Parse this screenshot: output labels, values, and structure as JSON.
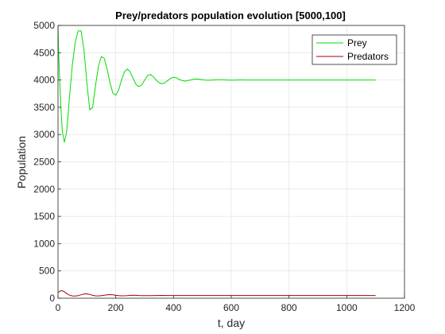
{
  "chart_data": {
    "type": "line",
    "title": "Prey/predators population evolution [5000,100]",
    "xlabel": "t, day",
    "ylabel": "Population",
    "xlim": [
      0,
      1200
    ],
    "ylim": [
      0,
      5000
    ],
    "xticks": [
      0,
      200,
      400,
      600,
      800,
      1000,
      1200
    ],
    "yticks": [
      0,
      500,
      1000,
      1500,
      2000,
      2500,
      3000,
      3500,
      4000,
      4500,
      5000
    ],
    "grid": true,
    "legend_position": "top-right",
    "series": [
      {
        "name": "Prey",
        "color": "#00dd00",
        "x": [
          0,
          2,
          5,
          10,
          15,
          22,
          30,
          40,
          50,
          60,
          70,
          80,
          90,
          100,
          110,
          120,
          130,
          140,
          150,
          160,
          170,
          180,
          190,
          200,
          210,
          220,
          230,
          240,
          250,
          260,
          270,
          280,
          290,
          300,
          310,
          320,
          330,
          340,
          350,
          360,
          370,
          380,
          390,
          400,
          410,
          420,
          430,
          440,
          450,
          460,
          470,
          480,
          490,
          500,
          510,
          520,
          530,
          540,
          550,
          560,
          570,
          580,
          590,
          600,
          610,
          620,
          630,
          640,
          650,
          660,
          670,
          680,
          690,
          700,
          720,
          750,
          800,
          850,
          900,
          950,
          1000,
          1050,
          1100
        ],
        "values": [
          5000,
          4550,
          4100,
          3500,
          3050,
          2860,
          3050,
          3700,
          4300,
          4700,
          4900,
          4900,
          4550,
          3950,
          3450,
          3500,
          3900,
          4250,
          4430,
          4400,
          4200,
          3950,
          3760,
          3720,
          3820,
          4000,
          4150,
          4200,
          4150,
          4030,
          3920,
          3880,
          3910,
          4000,
          4080,
          4100,
          4060,
          4000,
          3950,
          3930,
          3950,
          3990,
          4030,
          4050,
          4040,
          4010,
          3990,
          3980,
          3990,
          4000,
          4015,
          4020,
          4015,
          4005,
          3998,
          3995,
          3998,
          4002,
          4005,
          4006,
          4004,
          4001,
          3999,
          3998,
          3999,
          4000,
          4001,
          4001,
          4000,
          4000,
          4000,
          4000,
          4000,
          4000,
          4000,
          4000,
          4000,
          4000,
          4000,
          4000,
          4000,
          4000,
          4000
        ]
      },
      {
        "name": "Predators",
        "color": "#aa0000",
        "x": [
          0,
          10,
          20,
          30,
          40,
          50,
          60,
          70,
          80,
          90,
          100,
          110,
          120,
          130,
          140,
          150,
          160,
          170,
          180,
          190,
          200,
          210,
          220,
          230,
          240,
          250,
          260,
          270,
          280,
          290,
          300,
          320,
          340,
          360,
          380,
          400,
          450,
          500,
          600,
          700,
          800,
          900,
          1000,
          1100
        ],
        "values": [
          100,
          140,
          125,
          85,
          55,
          42,
          40,
          48,
          62,
          78,
          80,
          68,
          52,
          44,
          42,
          46,
          54,
          62,
          66,
          62,
          54,
          47,
          44,
          45,
          48,
          52,
          54,
          52,
          50,
          48,
          47,
          48,
          50,
          51,
          50,
          50,
          50,
          50,
          50,
          50,
          50,
          50,
          50,
          50
        ]
      }
    ]
  }
}
